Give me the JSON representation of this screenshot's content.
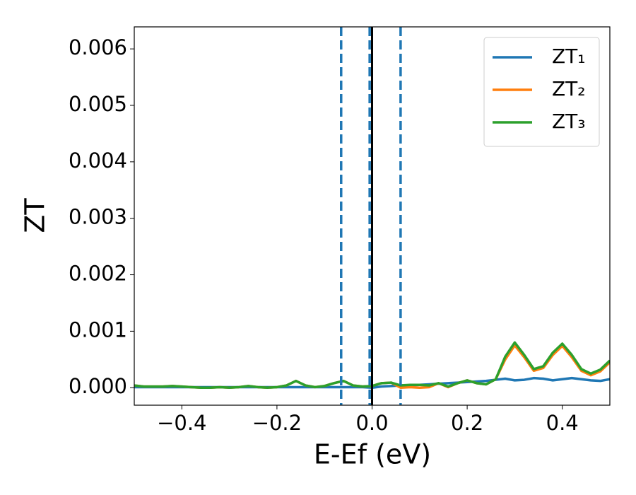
{
  "chart_data": {
    "type": "line",
    "x_label": "E-Ef (eV)",
    "y_label": "ZT",
    "x": [
      -0.5,
      -0.48,
      -0.46,
      -0.44,
      -0.42,
      -0.4,
      -0.38,
      -0.36,
      -0.34,
      -0.32,
      -0.3,
      -0.28,
      -0.26,
      -0.24,
      -0.22,
      -0.2,
      -0.18,
      -0.16,
      -0.14,
      -0.12,
      -0.1,
      -0.08,
      -0.06,
      -0.04,
      -0.02,
      0,
      0.02,
      0.04,
      0.06,
      0.08,
      0.1,
      0.12,
      0.14,
      0.16,
      0.18,
      0.2,
      0.22,
      0.24,
      0.26,
      0.28,
      0.3,
      0.32,
      0.34,
      0.36,
      0.38,
      0.4,
      0.42,
      0.44,
      0.46,
      0.48,
      0.5
    ],
    "series": [
      {
        "name": "ZT₁",
        "color": "#1f77b4",
        "values": [
          1e-05,
          1e-05,
          1e-05,
          1e-05,
          1e-05,
          1e-05,
          1e-05,
          1e-05,
          1e-05,
          1e-05,
          1e-05,
          1e-05,
          1e-05,
          1e-05,
          1e-05,
          1e-05,
          1e-05,
          1e-05,
          1e-05,
          1e-05,
          1e-05,
          1e-05,
          1e-05,
          1e-05,
          1e-05,
          0,
          2e-05,
          3e-05,
          4e-05,
          4e-05,
          5e-05,
          6e-05,
          7e-05,
          8e-05,
          9e-05,
          0.0001,
          0.00011,
          0.00012,
          0.00014,
          0.00016,
          0.00013,
          0.00014,
          0.00017,
          0.00016,
          0.00013,
          0.00015,
          0.00017,
          0.00015,
          0.00013,
          0.00012,
          0.00015
        ]
      },
      {
        "name": "ZT₂",
        "color": "#ff7f0e",
        "values": [
          4e-05,
          2e-05,
          2e-05,
          2e-05,
          3e-05,
          2e-05,
          1e-05,
          0,
          0,
          1e-05,
          0,
          1e-05,
          3e-05,
          1e-05,
          0,
          1e-05,
          4e-05,
          0.00012,
          4e-05,
          1e-05,
          3e-05,
          8e-05,
          0.00012,
          4e-05,
          2e-05,
          3e-05,
          8e-05,
          9e-05,
          0,
          1e-05,
          0,
          1e-05,
          8e-05,
          1e-05,
          8e-05,
          0.00013,
          8e-05,
          6e-05,
          0.00015,
          0.0005,
          0.00075,
          0.00054,
          0.0003,
          0.00035,
          0.00058,
          0.00074,
          0.00054,
          0.0003,
          0.00022,
          0.00029,
          0.00045
        ]
      },
      {
        "name": "ZT₃",
        "color": "#2ca02c",
        "values": [
          4e-05,
          2e-05,
          2e-05,
          2e-05,
          3e-05,
          2e-05,
          1e-05,
          0,
          0,
          1e-05,
          0,
          1e-05,
          3e-05,
          1e-05,
          0,
          1e-05,
          4e-05,
          0.00012,
          4e-05,
          1e-05,
          3e-05,
          8e-05,
          0.00012,
          4e-05,
          2e-05,
          3e-05,
          8e-05,
          9e-05,
          4e-05,
          5e-05,
          5e-05,
          4e-05,
          8e-05,
          2e-05,
          8e-05,
          0.00013,
          8e-05,
          6e-05,
          0.00015,
          0.00055,
          0.0008,
          0.00058,
          0.00033,
          0.00038,
          0.00062,
          0.00078,
          0.00058,
          0.00033,
          0.00025,
          0.00032,
          0.00048
        ]
      }
    ],
    "vlines": [
      {
        "x": -0.065,
        "style": "dashed",
        "color": "#1f77b4"
      },
      {
        "x": -0.005,
        "style": "dashed",
        "color": "#1f77b4"
      },
      {
        "x": 0.06,
        "style": "dashed",
        "color": "#1f77b4"
      },
      {
        "x": 0,
        "style": "solid",
        "color": "#000000"
      }
    ],
    "xlim": [
      -0.5,
      0.5
    ],
    "xticks": [
      {
        "value": -0.4,
        "label": "−0.4"
      },
      {
        "value": -0.2,
        "label": "−0.2"
      },
      {
        "value": 0,
        "label": "0.0"
      },
      0.2,
      0.4
    ],
    "ylim": [
      -0.00031,
      0.00639
    ],
    "yticks": [
      {
        "value": 0,
        "label": "0.000"
      },
      0.001,
      0.002,
      0.003,
      0.004,
      0.005,
      0.006
    ],
    "grid": false,
    "legend": "upper right"
  }
}
